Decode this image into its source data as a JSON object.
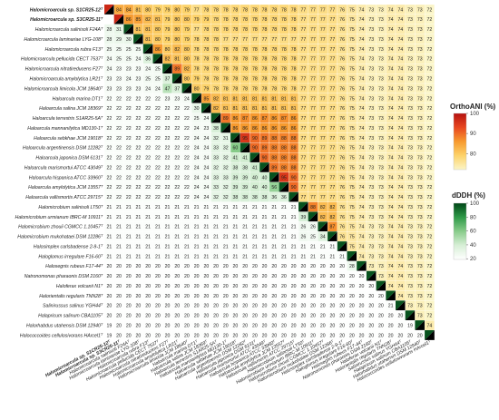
{
  "chart_data": {
    "type": "heatmap",
    "layout": "lower triangle dDDH (%), upper triangle OrthoANI (%), diagonal split",
    "strains": [
      "Halomicroarcula sp. S1CR25-12T",
      "Halomicroarcula sp. S3CR25-11T",
      "Halomicroarcula salinisoli F24AT",
      "Halomicroarcula laminariae LYG-108T",
      "Halomicroarcula rubra F13T",
      "Halomicroarcula pellucida CECT 7537T",
      "Halomicroarcula nitratireducens F27T",
      "Halomicroarcula amylolytica LR21T",
      "Halomicroarcula limicola JCM 18640T",
      "Haloarcula marina DT1T",
      "Haloarcula salina JCM 18369T",
      "Haloarcula terrestris S1AR25-5AT",
      "Haloarcula mannanilytica MD130-1T",
      "Haloarcula sebkhae JCM 19018T",
      "Haloarcula argentinensis DSM 12282T",
      "Haloarcula japonica DSM 6131T",
      "Haloarcula marismortui ATCC 43049T",
      "Haloarcula hispanica ATCC 33960T",
      "Haloarcula amylolytica JCM 13557T",
      "Haloarcula vallismortis ATCC 29715T",
      "Halomicrobium salinisoli LT50T",
      "Halomicrobium urmianum IBRC-M 10911T",
      "Halomicrobium zhouii CGMCC 1.10457T",
      "Halomicrobium mukohataei DSM 12286T",
      "Halosimplex carlsbadense 2-9-1T",
      "Haloglomus irregulare F16-60T",
      "Halosegnis rubeus F17-44T",
      "Natronomonas pharaonis DSM 2160T",
      "Haloferax volcanii N1T",
      "Halorientalis regularis TNN28T",
      "Salinirussus salinus YGH44T",
      "Halapricum salinum CBA1105T",
      "Halorhabdus utahensis DSM 12940T",
      "Halococcoides cellulosivorans HArcel1T"
    ],
    "rows": [
      "Halomicroarcula sp. S1CR25-12ᵀ",
      "Halomicroarcula sp. S3CR25-11ᵀ",
      "Halomicroarcula salinisoli F24Aᵀ",
      "Halomicroarcula laminariae LYG-108ᵀ",
      "Halomicroarcula rubra F13ᵀ",
      "Halomicroarcula pellucida CECT 7537ᵀ",
      "Halomicroarcula nitratireducens F27ᵀ",
      "Halomicroarcula amylolytica LR21ᵀ",
      "Halomicroarcula limicola JCM 18640ᵀ",
      "Haloarcula marina DT1ᵀ",
      "Haloarcula salina JCM 18369ᵀ",
      "Haloarcula terrestris S1AR25-5Aᵀ",
      "Haloarcula mannanilytica MD130-1ᵀ",
      "Haloarcula sebkhae JCM 19018ᵀ",
      "Haloarcula argentinensis DSM 12282ᵀ",
      "Haloarcula japonica DSM 6131ᵀ",
      "Haloarcula marismortui ATCC 43049ᵀ",
      "Haloarcula hispanica ATCC 33960ᵀ",
      "Haloarcula amylolytica JCM 13557ᵀ",
      "Haloarcula vallismortis ATCC 29715ᵀ",
      "Halomicrobium salinisoli LT50ᵀ",
      "Halomicrobium urmianum IBRC-M 10911ᵀ",
      "Halomicrobium zhouii CGMCC 1.10457ᵀ",
      "Halomicrobium mukohataei DSM 12286ᵀ",
      "Halosimplex carlsbadense 2-9-1ᵀ",
      "Haloglomus irregulare F16-60ᵀ",
      "Halosegnis rubeus F17-44ᵀ",
      "Natronomonas pharaonis DSM 2160ᵀ",
      "Haloferax volcanii N1ᵀ",
      "Halorientalis regularis TNN28ᵀ",
      "Salinirussus salinus YGH44ᵀ",
      "Halapricum salinum CBA1105ᵀ",
      "Halorhabdus utahensis DSM 12940ᵀ",
      "Halococcoides cellulosivorans HArcel1ᵀ"
    ],
    "bold_rows": [
      0,
      1
    ],
    "matrix": [
      [
        null,
        84,
        84,
        81,
        80,
        79,
        79,
        80,
        79,
        77,
        78,
        78,
        78,
        78,
        78,
        78,
        78,
        78,
        78,
        78,
        77,
        77,
        77,
        77,
        76,
        75,
        74,
        73,
        73,
        74,
        74,
        73,
        73,
        72
      ],
      [
        null,
        null,
        86,
        85,
        82,
        81,
        79,
        80,
        80,
        79,
        79,
        78,
        78,
        78,
        78,
        78,
        78,
        78,
        78,
        78,
        77,
        77,
        77,
        77,
        76,
        75,
        74,
        73,
        73,
        74,
        74,
        73,
        73,
        72
      ],
      [
        28,
        31,
        null,
        81,
        81,
        80,
        79,
        80,
        79,
        77,
        78,
        78,
        78,
        78,
        78,
        78,
        78,
        78,
        78,
        78,
        77,
        77,
        77,
        77,
        76,
        75,
        74,
        73,
        73,
        74,
        74,
        73,
        73,
        72
      ],
      [
        28,
        29,
        30,
        null,
        81,
        80,
        79,
        80,
        79,
        78,
        78,
        78,
        77,
        77,
        77,
        77,
        77,
        77,
        77,
        77,
        77,
        77,
        77,
        77,
        76,
        75,
        74,
        73,
        73,
        74,
        74,
        73,
        73,
        72
      ],
      [
        25,
        25,
        25,
        25,
        null,
        86,
        80,
        82,
        80,
        78,
        78,
        78,
        78,
        78,
        78,
        78,
        78,
        78,
        78,
        78,
        77,
        77,
        77,
        77,
        76,
        75,
        74,
        73,
        73,
        74,
        74,
        73,
        73,
        72
      ],
      [
        24,
        25,
        25,
        24,
        36,
        null,
        82,
        81,
        80,
        78,
        78,
        78,
        78,
        78,
        78,
        78,
        78,
        78,
        78,
        78,
        77,
        77,
        77,
        77,
        76,
        75,
        74,
        73,
        73,
        74,
        74,
        73,
        73,
        72
      ],
      [
        24,
        23,
        23,
        23,
        24,
        25,
        null,
        89,
        82,
        78,
        78,
        78,
        78,
        78,
        78,
        78,
        78,
        78,
        78,
        78,
        77,
        77,
        77,
        77,
        76,
        75,
        74,
        73,
        73,
        74,
        74,
        73,
        73,
        72
      ],
      [
        23,
        23,
        24,
        23,
        25,
        25,
        37,
        null,
        80,
        79,
        78,
        78,
        78,
        78,
        78,
        78,
        78,
        78,
        78,
        78,
        77,
        77,
        77,
        77,
        76,
        75,
        74,
        73,
        73,
        74,
        74,
        73,
        73,
        72
      ],
      [
        23,
        23,
        23,
        23,
        24,
        24,
        47,
        37,
        null,
        80,
        79,
        78,
        78,
        78,
        78,
        78,
        78,
        78,
        78,
        78,
        77,
        77,
        77,
        77,
        76,
        75,
        74,
        73,
        73,
        74,
        74,
        73,
        73,
        72
      ],
      [
        22,
        22,
        22,
        22,
        22,
        22,
        23,
        23,
        24,
        null,
        85,
        82,
        81,
        81,
        81,
        81,
        81,
        81,
        81,
        81,
        77,
        77,
        77,
        77,
        76,
        75,
        74,
        73,
        73,
        74,
        74,
        73,
        73,
        72
      ],
      [
        22,
        22,
        22,
        22,
        22,
        22,
        22,
        22,
        22,
        30,
        null,
        82,
        81,
        81,
        81,
        81,
        81,
        81,
        81,
        81,
        77,
        77,
        77,
        77,
        76,
        75,
        74,
        73,
        73,
        74,
        74,
        73,
        73,
        72
      ],
      [
        22,
        22,
        22,
        22,
        22,
        22,
        22,
        22,
        22,
        25,
        24,
        null,
        89,
        86,
        87,
        86,
        87,
        86,
        87,
        86,
        77,
        77,
        77,
        77,
        76,
        75,
        74,
        73,
        73,
        74,
        74,
        73,
        73,
        72
      ],
      [
        22,
        22,
        22,
        22,
        22,
        22,
        22,
        22,
        22,
        24,
        23,
        38,
        null,
        86,
        86,
        86,
        86,
        86,
        86,
        86,
        77,
        77,
        77,
        77,
        76,
        75,
        74,
        73,
        73,
        74,
        74,
        73,
        73,
        72
      ],
      [
        22,
        22,
        22,
        22,
        22,
        22,
        22,
        22,
        22,
        24,
        24,
        32,
        31,
        null,
        95,
        90,
        89,
        88,
        88,
        88,
        77,
        77,
        77,
        77,
        76,
        75,
        74,
        73,
        73,
        74,
        74,
        73,
        73,
        72
      ],
      [
        22,
        22,
        22,
        22,
        22,
        22,
        22,
        22,
        22,
        24,
        24,
        33,
        32,
        60,
        null,
        90,
        89,
        88,
        88,
        88,
        77,
        77,
        77,
        77,
        76,
        75,
        74,
        73,
        73,
        74,
        74,
        73,
        73,
        72
      ],
      [
        22,
        22,
        22,
        22,
        22,
        22,
        22,
        22,
        22,
        24,
        24,
        33,
        32,
        41,
        41,
        null,
        90,
        88,
        88,
        88,
        77,
        77,
        77,
        77,
        76,
        75,
        74,
        73,
        73,
        74,
        74,
        73,
        73,
        72
      ],
      [
        22,
        22,
        22,
        22,
        22,
        22,
        22,
        22,
        22,
        24,
        24,
        32,
        32,
        38,
        38,
        41,
        null,
        89,
        88,
        88,
        77,
        77,
        77,
        77,
        76,
        75,
        74,
        73,
        73,
        74,
        74,
        73,
        73,
        72
      ],
      [
        22,
        22,
        22,
        22,
        22,
        22,
        22,
        22,
        22,
        24,
        24,
        33,
        33,
        39,
        39,
        40,
        40,
        null,
        95,
        90,
        77,
        77,
        77,
        77,
        76,
        75,
        74,
        73,
        73,
        74,
        74,
        73,
        73,
        72
      ],
      [
        22,
        22,
        22,
        22,
        22,
        22,
        22,
        22,
        22,
        24,
        24,
        33,
        32,
        39,
        39,
        40,
        40,
        56,
        null,
        90,
        77,
        77,
        77,
        77,
        76,
        75,
        74,
        73,
        73,
        74,
        74,
        73,
        73,
        72
      ],
      [
        22,
        22,
        22,
        22,
        22,
        22,
        22,
        22,
        22,
        24,
        24,
        32,
        32,
        38,
        38,
        38,
        38,
        36,
        36,
        null,
        77,
        77,
        77,
        77,
        76,
        75,
        74,
        73,
        73,
        74,
        74,
        73,
        73,
        72
      ],
      [
        21,
        21,
        21,
        21,
        21,
        21,
        21,
        21,
        21,
        21,
        21,
        21,
        21,
        21,
        21,
        21,
        21,
        21,
        21,
        21,
        null,
        88,
        82,
        82,
        76,
        75,
        74,
        73,
        73,
        74,
        74,
        73,
        73,
        72
      ],
      [
        21,
        21,
        21,
        21,
        21,
        21,
        21,
        21,
        21,
        21,
        21,
        21,
        21,
        21,
        21,
        21,
        21,
        21,
        21,
        21,
        39,
        null,
        82,
        82,
        76,
        75,
        74,
        73,
        73,
        74,
        74,
        73,
        73,
        72
      ],
      [
        21,
        21,
        21,
        21,
        21,
        21,
        21,
        21,
        21,
        21,
        21,
        21,
        21,
        21,
        21,
        21,
        21,
        21,
        21,
        21,
        26,
        26,
        null,
        87,
        76,
        75,
        74,
        73,
        73,
        74,
        74,
        73,
        73,
        72
      ],
      [
        21,
        21,
        21,
        21,
        21,
        21,
        21,
        21,
        21,
        21,
        21,
        21,
        21,
        21,
        21,
        21,
        21,
        21,
        21,
        21,
        26,
        25,
        34,
        null,
        76,
        75,
        74,
        73,
        73,
        74,
        74,
        73,
        73,
        72
      ],
      [
        21,
        21,
        21,
        21,
        21,
        21,
        21,
        21,
        21,
        21,
        21,
        21,
        21,
        21,
        21,
        21,
        21,
        21,
        21,
        21,
        21,
        21,
        21,
        21,
        null,
        75,
        74,
        73,
        73,
        74,
        74,
        73,
        73,
        72
      ],
      [
        21,
        21,
        21,
        21,
        21,
        21,
        21,
        21,
        21,
        21,
        21,
        21,
        21,
        21,
        21,
        21,
        21,
        21,
        21,
        21,
        21,
        21,
        21,
        21,
        21,
        null,
        74,
        73,
        73,
        74,
        74,
        73,
        73,
        72
      ],
      [
        20,
        20,
        20,
        20,
        20,
        20,
        20,
        20,
        20,
        20,
        20,
        20,
        20,
        20,
        20,
        20,
        20,
        20,
        20,
        20,
        20,
        20,
        20,
        20,
        20,
        28,
        null,
        73,
        73,
        74,
        74,
        73,
        73,
        72
      ],
      [
        20,
        20,
        20,
        20,
        20,
        20,
        20,
        20,
        20,
        20,
        20,
        20,
        20,
        20,
        20,
        20,
        20,
        20,
        20,
        20,
        20,
        20,
        20,
        20,
        20,
        20,
        20,
        null,
        73,
        74,
        74,
        73,
        73,
        72
      ],
      [
        20,
        20,
        20,
        20,
        20,
        20,
        20,
        20,
        20,
        20,
        20,
        20,
        20,
        20,
        20,
        20,
        20,
        20,
        20,
        20,
        20,
        20,
        20,
        20,
        20,
        20,
        20,
        20,
        null,
        74,
        74,
        73,
        73,
        72
      ],
      [
        20,
        20,
        20,
        20,
        20,
        20,
        20,
        20,
        20,
        20,
        20,
        20,
        20,
        20,
        20,
        20,
        20,
        20,
        20,
        20,
        20,
        20,
        20,
        20,
        20,
        20,
        20,
        20,
        20,
        null,
        74,
        73,
        73,
        72
      ],
      [
        20,
        20,
        20,
        20,
        20,
        20,
        20,
        20,
        20,
        20,
        20,
        20,
        20,
        20,
        20,
        20,
        20,
        20,
        20,
        20,
        20,
        20,
        20,
        20,
        20,
        20,
        20,
        20,
        20,
        21,
        null,
        73,
        73,
        72
      ],
      [
        20,
        20,
        20,
        20,
        20,
        20,
        20,
        20,
        20,
        20,
        20,
        20,
        20,
        20,
        20,
        20,
        20,
        20,
        20,
        20,
        20,
        20,
        20,
        20,
        20,
        20,
        20,
        20,
        20,
        20,
        20,
        null,
        73,
        72
      ],
      [
        19,
        20,
        20,
        20,
        20,
        20,
        20,
        20,
        20,
        20,
        20,
        20,
        20,
        20,
        20,
        20,
        20,
        20,
        20,
        20,
        20,
        20,
        20,
        20,
        20,
        20,
        20,
        20,
        20,
        20,
        20,
        19,
        null,
        74
      ],
      [
        19,
        20,
        20,
        20,
        20,
        20,
        20,
        20,
        20,
        20,
        20,
        20,
        20,
        20,
        20,
        20,
        20,
        20,
        20,
        20,
        20,
        20,
        20,
        20,
        20,
        20,
        20,
        20,
        20,
        20,
        20,
        20,
        20,
        null
      ]
    ],
    "legends": [
      {
        "title": "OrthoANI (%)",
        "ticks": [
          100,
          90,
          80
        ],
        "range": [
          72,
          100
        ],
        "colors": [
          "#fbf5c7",
          "#fdd36a",
          "#f79a2e",
          "#e8461f",
          "#b5120f"
        ]
      },
      {
        "title": "dDDH (%)",
        "ticks": [
          100,
          80,
          60,
          40,
          20
        ],
        "range": [
          19,
          100
        ],
        "colors": [
          "#ffffff",
          "#d7efd6",
          "#88cc8a",
          "#2e9a48",
          "#004617"
        ]
      }
    ],
    "diagonal_color": "#000000"
  }
}
